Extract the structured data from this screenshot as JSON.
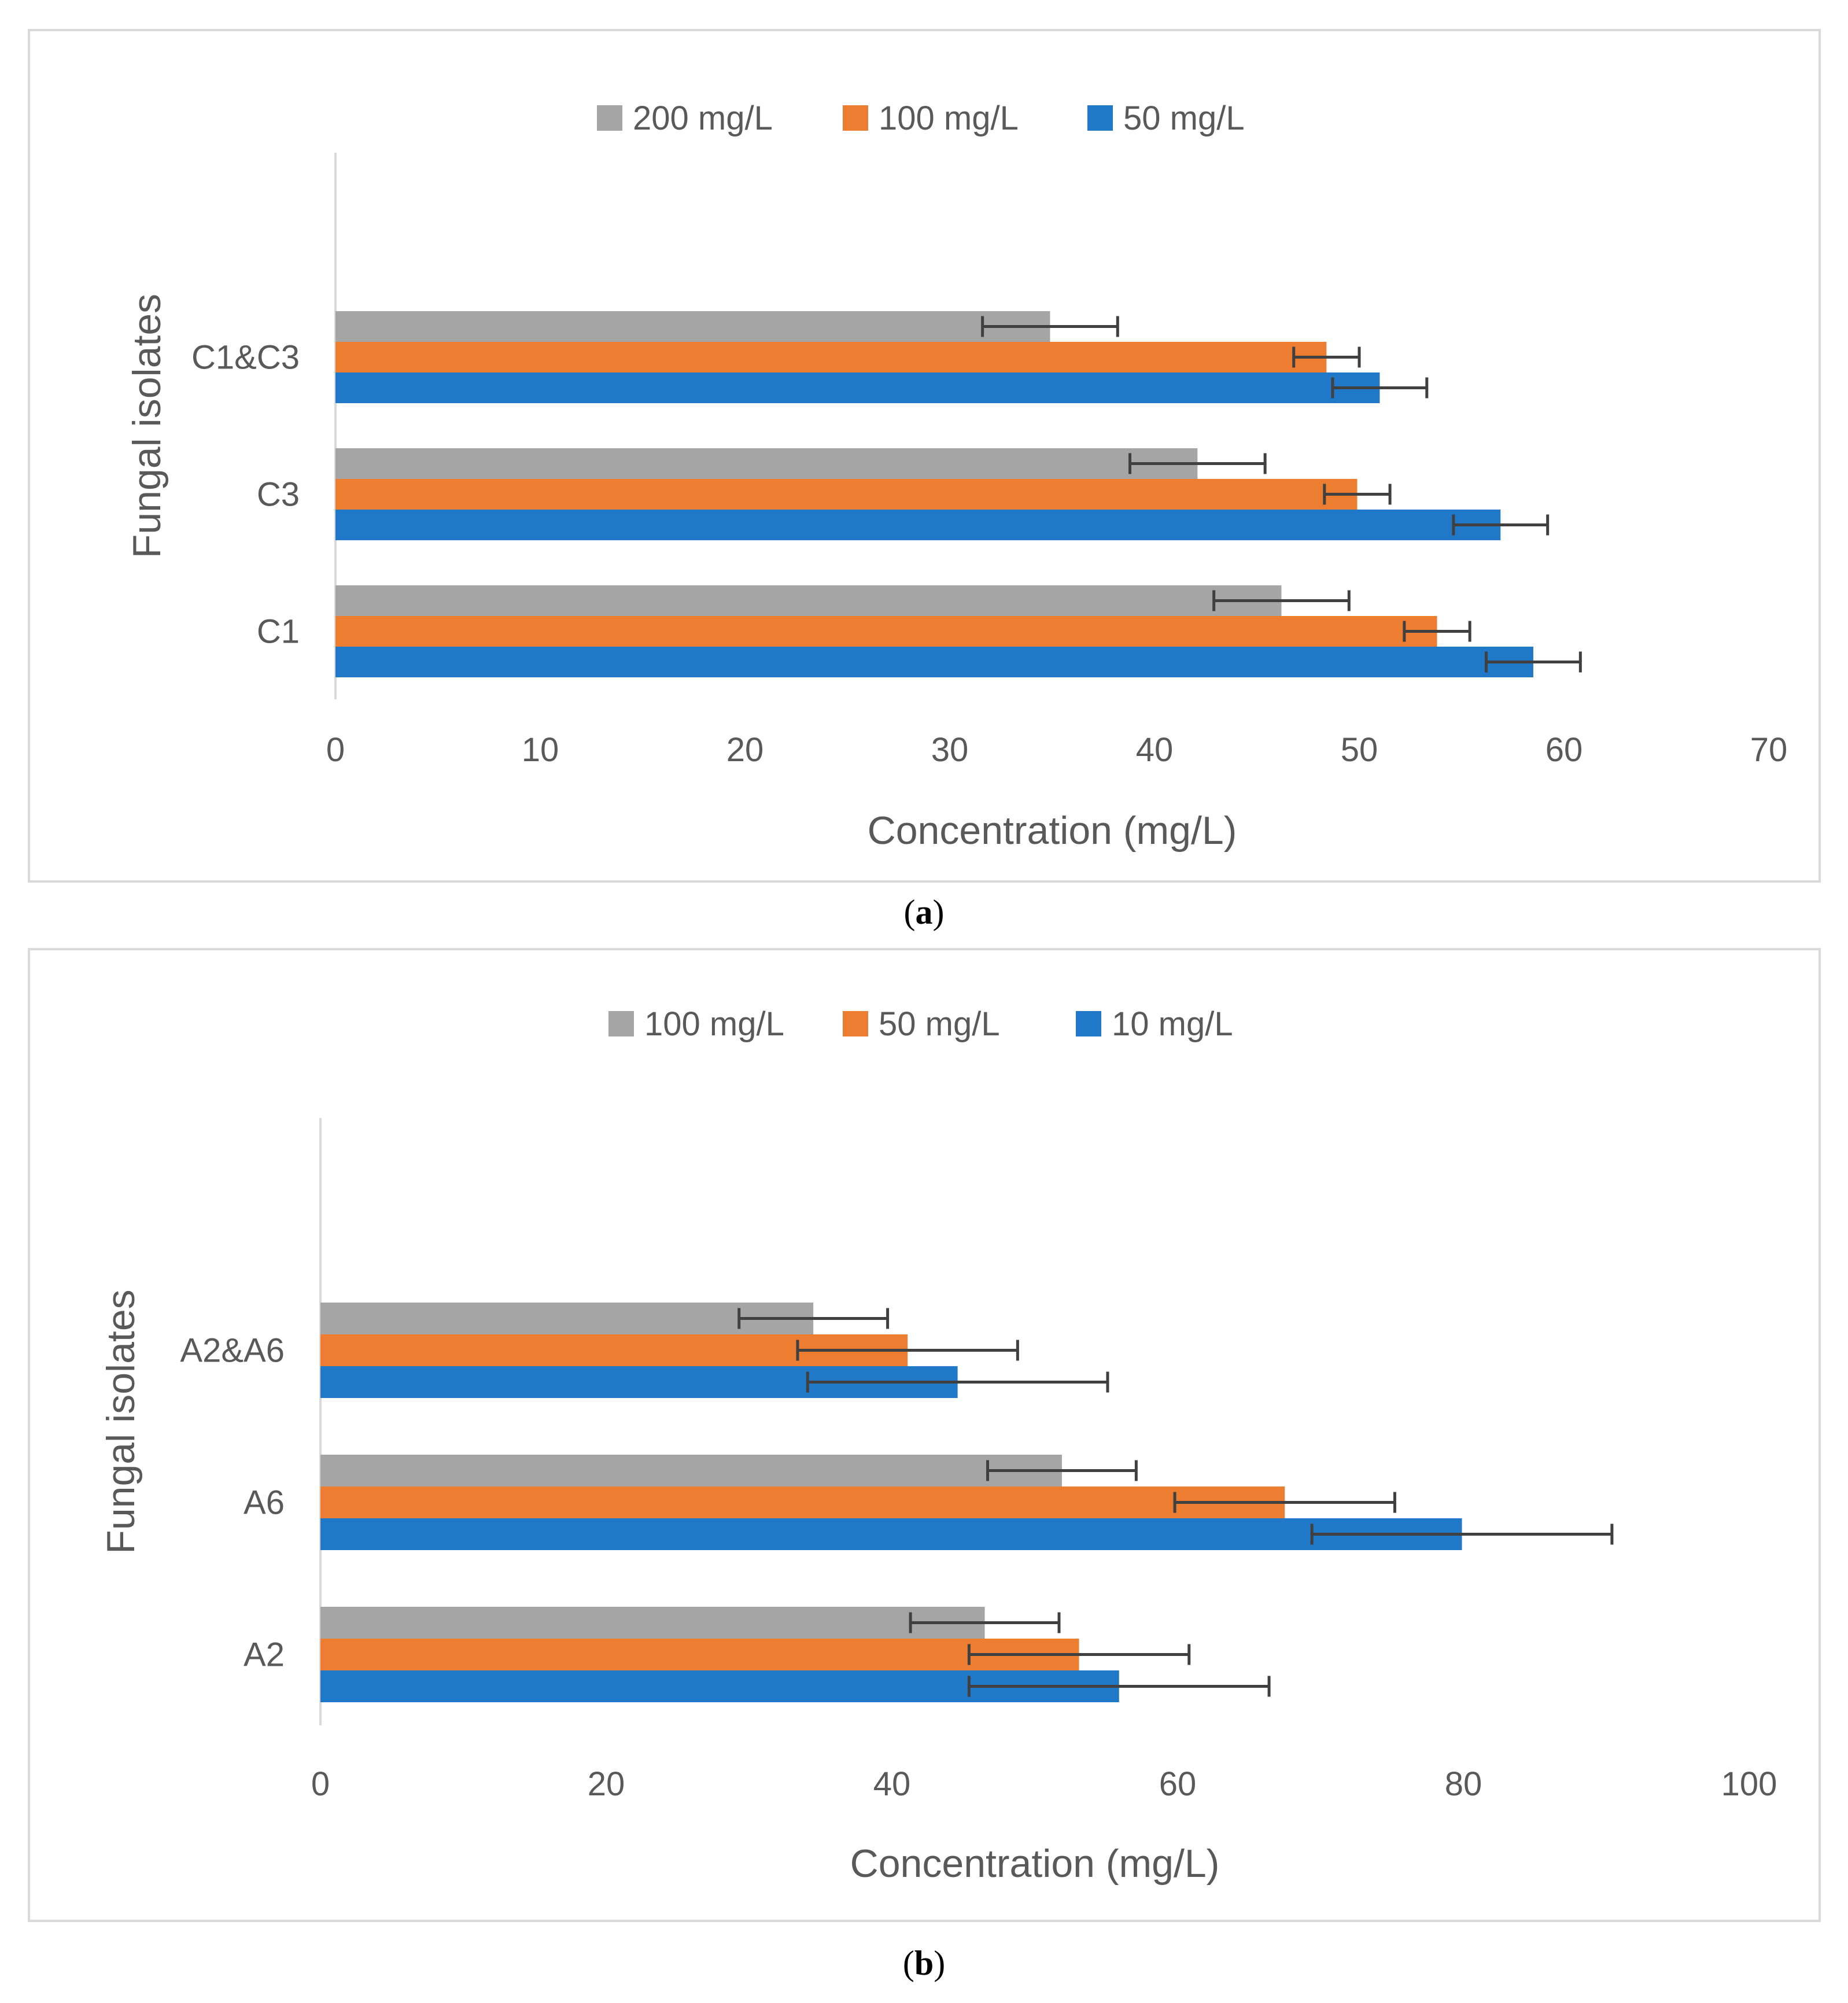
{
  "captions": {
    "a_pre": "(",
    "a_letter": "a",
    "a_post": ")",
    "b_pre": "(",
    "b_letter": "b",
    "b_post": ")"
  },
  "chart_data": [
    {
      "type": "bar",
      "orientation": "horizontal",
      "categories": [
        "C1",
        "C3",
        "C1&C3"
      ],
      "series": [
        {
          "name": "200 mg/L",
          "color": "#a5a5a5",
          "values": [
            46.2,
            42.1,
            34.9
          ],
          "errors": [
            3.3,
            3.3,
            3.3
          ]
        },
        {
          "name": "100 mg/L",
          "color": "#ed7d31",
          "values": [
            53.8,
            49.9,
            48.4
          ],
          "errors": [
            1.6,
            1.6,
            1.6
          ]
        },
        {
          "name": "50 mg/L",
          "color": "#1f78c8",
          "values": [
            58.5,
            56.9,
            51.0
          ],
          "errors": [
            2.3,
            2.3,
            2.3
          ]
        }
      ],
      "legend_order": [
        "200 mg/L",
        "100 mg/L",
        "50 mg/L"
      ],
      "xlabel": "Concentration (mg/L)",
      "ylabel": "Fungal isolates",
      "xlim": [
        0,
        70
      ],
      "xticks": [
        0,
        10,
        20,
        30,
        40,
        50,
        60,
        70
      ],
      "legend": "top-center",
      "grid": false
    },
    {
      "type": "bar",
      "orientation": "horizontal",
      "categories": [
        "A2",
        "A6",
        "A2&A6"
      ],
      "series": [
        {
          "name": "100 mg/L",
          "color": "#a5a5a5",
          "values": [
            46.5,
            51.9,
            34.5
          ],
          "errors": [
            5.2,
            5.2,
            5.2
          ]
        },
        {
          "name": "50 mg/L",
          "color": "#ed7d31",
          "values": [
            53.1,
            67.5,
            41.1
          ],
          "errors": [
            7.7,
            7.7,
            7.7
          ]
        },
        {
          "name": "10 mg/L",
          "color": "#1f78c8",
          "values": [
            55.9,
            79.9,
            44.6
          ],
          "errors": [
            10.5,
            10.5,
            10.5
          ]
        }
      ],
      "legend_order": [
        "100 mg/L",
        "50 mg/L",
        "10 mg/L"
      ],
      "xlabel": "Concentration (mg/L)",
      "ylabel": "Fungal isolates",
      "xlim": [
        0,
        100
      ],
      "xticks": [
        0,
        20,
        40,
        60,
        80,
        100
      ],
      "legend": "top-center",
      "grid": false
    }
  ]
}
